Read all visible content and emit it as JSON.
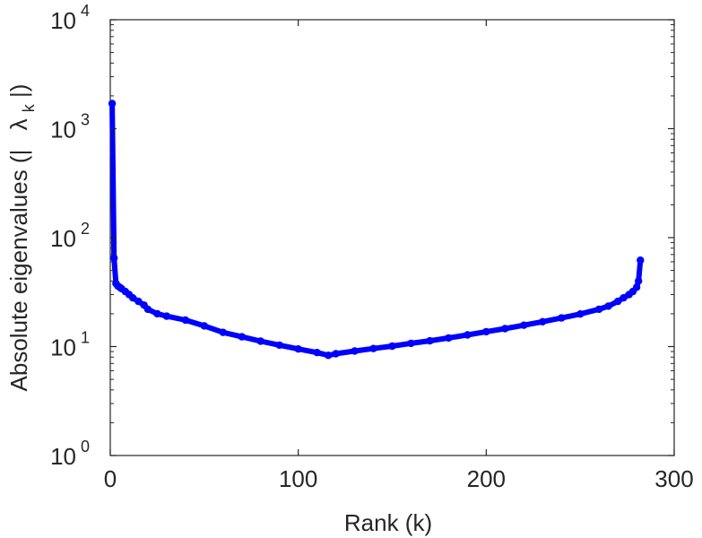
{
  "chart_data": {
    "type": "line",
    "xlabel": "Rank (k)",
    "ylabel": {
      "prefix": "Absolute eigenvalues (|",
      "symbol": "λ",
      "subscript": "k",
      "suffix": "|)"
    },
    "xlim": [
      0,
      300
    ],
    "ylim": [
      1,
      10000
    ],
    "yscale": "log",
    "grid": false,
    "x_ticks": [
      {
        "value": 0,
        "label": "0"
      },
      {
        "value": 100,
        "label": "100"
      },
      {
        "value": 200,
        "label": "200"
      },
      {
        "value": 300,
        "label": "300"
      }
    ],
    "y_ticks": [
      {
        "value": 1,
        "base": "10",
        "exp": "0"
      },
      {
        "value": 10,
        "base": "10",
        "exp": "1"
      },
      {
        "value": 100,
        "base": "10",
        "exp": "2"
      },
      {
        "value": 1000,
        "base": "10",
        "exp": "3"
      },
      {
        "value": 10000,
        "base": "10",
        "exp": "4"
      }
    ],
    "series": [
      {
        "color": "#0000ff",
        "x": [
          1,
          2,
          3,
          4,
          5,
          6,
          8,
          10,
          12,
          15,
          18,
          20,
          25,
          30,
          40,
          50,
          60,
          70,
          80,
          90,
          100,
          110,
          116,
          120,
          130,
          140,
          150,
          160,
          170,
          180,
          190,
          200,
          210,
          220,
          230,
          240,
          250,
          260,
          265,
          270,
          273,
          276,
          278,
          280,
          281,
          282
        ],
        "y": [
          1700,
          65,
          38,
          36,
          35,
          34,
          32,
          30,
          28,
          26,
          24,
          22,
          20,
          19,
          17.5,
          15.5,
          13.5,
          12.3,
          11.2,
          10.3,
          9.5,
          8.8,
          8.3,
          8.6,
          9.1,
          9.6,
          10.1,
          10.7,
          11.3,
          12,
          12.8,
          13.7,
          14.6,
          15.7,
          16.9,
          18.3,
          19.9,
          22,
          23.5,
          26,
          28,
          30,
          32,
          35,
          40,
          62
        ]
      }
    ]
  }
}
